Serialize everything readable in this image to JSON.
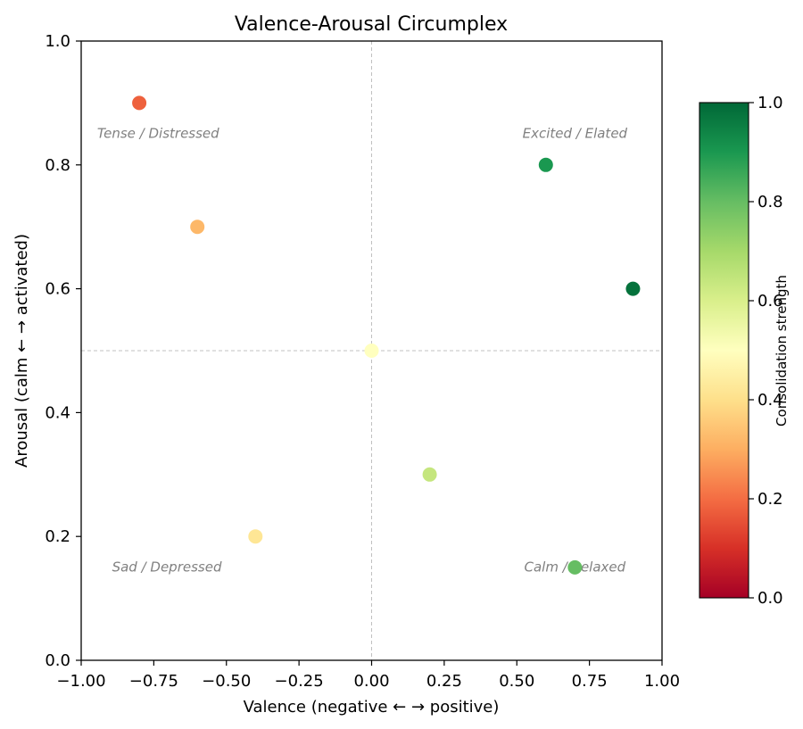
{
  "chart_data": {
    "type": "scatter",
    "title": "Valence-Arousal Circumplex",
    "xlabel": "Valence  (negative ← → positive)",
    "ylabel": "Arousal  (calm ← → activated)",
    "xlim": [
      -1.0,
      1.0
    ],
    "ylim": [
      0.0,
      1.0
    ],
    "x_ticks": [
      "−1.00",
      "−0.75",
      "−0.50",
      "−0.25",
      "0.00",
      "0.25",
      "0.50",
      "0.75",
      "1.00"
    ],
    "x_tick_values": [
      -1.0,
      -0.75,
      -0.5,
      -0.25,
      0.0,
      0.25,
      0.5,
      0.75,
      1.0
    ],
    "y_ticks": [
      "0.0",
      "0.2",
      "0.4",
      "0.6",
      "0.8",
      "1.0"
    ],
    "y_tick_values": [
      0.0,
      0.2,
      0.4,
      0.6,
      0.8,
      1.0
    ],
    "reference_lines": {
      "x": 0.0,
      "y": 0.5
    },
    "quadrant_labels": [
      {
        "text": "Tense / Distressed",
        "x": -0.735,
        "y": 0.85
      },
      {
        "text": "Excited / Elated",
        "x": 0.7,
        "y": 0.85
      },
      {
        "text": "Sad / Depressed",
        "x": -0.705,
        "y": 0.15
      },
      {
        "text": "Calm / Relaxed",
        "x": 0.7,
        "y": 0.15
      }
    ],
    "points": [
      {
        "x": -0.8,
        "y": 0.9,
        "strength": 0.18
      },
      {
        "x": -0.6,
        "y": 0.7,
        "strength": 0.32
      },
      {
        "x": -0.4,
        "y": 0.2,
        "strength": 0.42
      },
      {
        "x": 0.0,
        "y": 0.5,
        "strength": 0.5
      },
      {
        "x": 0.2,
        "y": 0.3,
        "strength": 0.64
      },
      {
        "x": 0.6,
        "y": 0.8,
        "strength": 0.9
      },
      {
        "x": 0.9,
        "y": 0.6,
        "strength": 0.98
      },
      {
        "x": 0.7,
        "y": 0.15,
        "strength": 0.8
      }
    ],
    "colorbar": {
      "label": "Consolidation strength",
      "colormap": "RdYlGn",
      "range": [
        0.0,
        1.0
      ],
      "ticks": [
        "0.0",
        "0.2",
        "0.4",
        "0.6",
        "0.8",
        "1.0"
      ],
      "tick_values": [
        0.0,
        0.2,
        0.4,
        0.6,
        0.8,
        1.0
      ]
    },
    "grid": false,
    "colors": {
      "reference_line": "#c0c0c0",
      "quadrant_text": "#808080",
      "axis": "#000000"
    }
  }
}
